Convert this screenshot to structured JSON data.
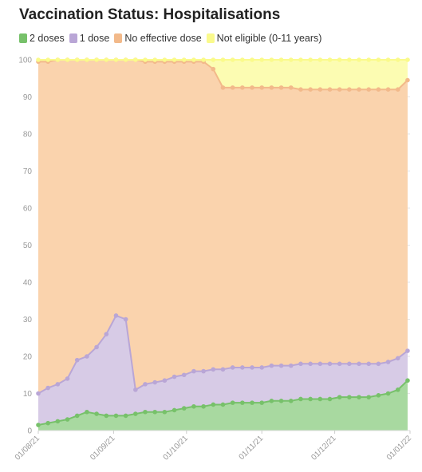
{
  "chart_data": {
    "type": "area",
    "title": "Vaccination Status: Hospitalisations",
    "stacked": true,
    "xlabel": "",
    "ylabel": "",
    "ylim": [
      0,
      100
    ],
    "yticks": [
      0,
      10,
      20,
      30,
      40,
      50,
      60,
      70,
      80,
      90,
      100
    ],
    "xticks": [
      "01/08/21",
      "01/09/21",
      "01/10/21",
      "01/11/21",
      "01/12/21",
      "01/01/22"
    ],
    "grid": "horizontal",
    "legend_position": "top-left",
    "x": [
      "01/08/21",
      "05/08/21",
      "09/08/21",
      "13/08/21",
      "17/08/21",
      "21/08/21",
      "25/08/21",
      "29/08/21",
      "02/09/21",
      "06/09/21",
      "10/09/21",
      "14/09/21",
      "18/09/21",
      "22/09/21",
      "26/09/21",
      "30/09/21",
      "04/10/21",
      "08/10/21",
      "12/10/21",
      "16/10/21",
      "20/10/21",
      "24/10/21",
      "28/10/21",
      "01/11/21",
      "05/11/21",
      "09/11/21",
      "13/11/21",
      "17/11/21",
      "21/11/21",
      "25/11/21",
      "29/11/21",
      "03/12/21",
      "07/12/21",
      "11/12/21",
      "15/12/21",
      "19/12/21",
      "23/12/21",
      "27/12/21",
      "31/12/21"
    ],
    "series": [
      {
        "name": "2 doses",
        "color": "#77c16a",
        "fill": "#a8d9a0",
        "values": [
          1.5,
          2,
          2.5,
          3,
          4,
          5,
          4.5,
          4,
          4,
          4,
          4.5,
          5,
          5,
          5,
          5.5,
          6,
          6.5,
          6.5,
          7,
          7,
          7.5,
          7.5,
          7.5,
          7.5,
          8,
          8,
          8,
          8.5,
          8.5,
          8.5,
          8.5,
          9,
          9,
          9,
          9,
          9.5,
          10,
          11,
          13.5
        ]
      },
      {
        "name": "1 dose",
        "color": "#b9a6d6",
        "fill": "#d7cbe6",
        "values": [
          8.5,
          9.5,
          10,
          11,
          15,
          15,
          18,
          22,
          27,
          26,
          6.5,
          7.5,
          8,
          8.5,
          9,
          9,
          9.5,
          9.5,
          9.5,
          9.5,
          9.5,
          9.5,
          9.5,
          9.5,
          9.5,
          9.5,
          9.5,
          9.5,
          9.5,
          9.5,
          9.5,
          9,
          9,
          9,
          9,
          8.5,
          8.5,
          8.5,
          8
        ]
      },
      {
        "name": "No effective dose",
        "color": "#f2b98a",
        "fill": "#fad3ad",
        "values": [
          89.5,
          88,
          87.5,
          86,
          81,
          80,
          77.5,
          74,
          69,
          70,
          89,
          87,
          86.5,
          86,
          85,
          84.5,
          83.5,
          83.5,
          81,
          76,
          75.5,
          75.5,
          75.5,
          75.5,
          75,
          75,
          75,
          74,
          74,
          74,
          74,
          74,
          74,
          74,
          74,
          74,
          73.5,
          72.5,
          73
        ]
      },
      {
        "name": "Not eligible (0-11 years)",
        "color": "#fafa8c",
        "fill": "#fcfcb2",
        "values": [
          0.5,
          0.5,
          0,
          0,
          0,
          0,
          0,
          0,
          0,
          0,
          0,
          0.5,
          0.5,
          0.5,
          0.5,
          0.5,
          0.5,
          0.5,
          2.5,
          7.5,
          7.5,
          7.5,
          7.5,
          7.5,
          7.5,
          7.5,
          7.5,
          8,
          8,
          8,
          8,
          8,
          8,
          8,
          8,
          8,
          8,
          8,
          5.5
        ]
      }
    ]
  }
}
